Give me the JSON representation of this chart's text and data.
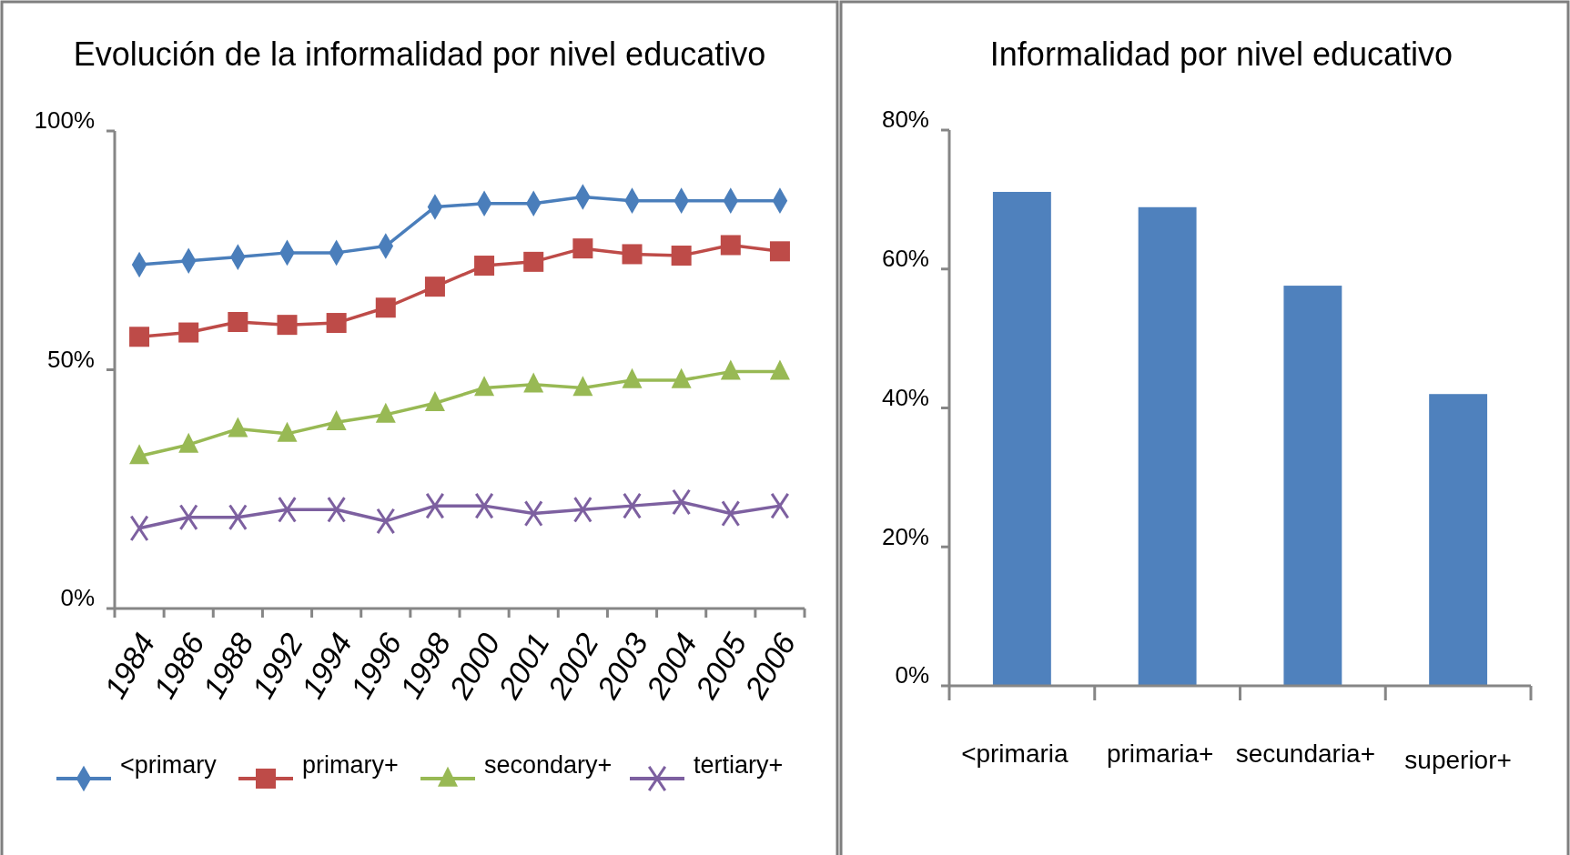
{
  "chart_data": [
    {
      "type": "line",
      "title": "Evolución de la informalidad por nivel educativo",
      "categories": [
        "1984",
        "1986",
        "1988",
        "1992",
        "1994",
        "1996",
        "1998",
        "2000",
        "2001",
        "2002",
        "2003",
        "2004",
        "2005",
        "2006"
      ],
      "series": [
        {
          "name": "<primary",
          "color": "#4a7ebb",
          "marker": "diamond",
          "values": [
            72.0,
            72.8,
            73.6,
            74.5,
            74.5,
            75.9,
            84.1,
            84.8,
            84.8,
            86.2,
            85.4,
            85.4,
            85.4,
            85.4
          ]
        },
        {
          "name": "primary+",
          "color": "#be4b48",
          "marker": "square",
          "values": [
            56.9,
            57.8,
            60.0,
            59.4,
            59.8,
            63.0,
            67.4,
            71.8,
            72.6,
            75.4,
            74.2,
            73.9,
            76.1,
            74.8
          ]
        },
        {
          "name": "secondary+",
          "color": "#98b954",
          "marker": "triangle",
          "values": [
            31.9,
            34.3,
            37.6,
            36.6,
            39.0,
            40.6,
            43.0,
            46.2,
            46.9,
            46.2,
            47.8,
            47.8,
            49.6,
            49.6
          ]
        },
        {
          "name": "tertiary+",
          "color": "#7d60a0",
          "marker": "cross",
          "values": [
            16.8,
            19.1,
            19.1,
            20.7,
            20.7,
            18.3,
            21.5,
            21.5,
            19.9,
            20.7,
            21.5,
            22.3,
            19.9,
            21.5
          ]
        }
      ],
      "ylim": [
        0,
        100
      ],
      "yticks": [
        {
          "value": 0,
          "label": "0%"
        },
        {
          "value": 50,
          "label": "50%"
        },
        {
          "value": 100,
          "label": "100%"
        }
      ],
      "grid": false,
      "legend": "bottom",
      "line_style": "solid"
    },
    {
      "type": "bar",
      "title": "Informalidad por nivel educativo",
      "categories": [
        "<primaria",
        "primaria+",
        "secundaria+",
        "superior+"
      ],
      "values": [
        71.1,
        68.9,
        57.6,
        42.0
      ],
      "color": "#4f81bd",
      "ylim": [
        0,
        80
      ],
      "yticks": [
        {
          "value": 0,
          "label": "0%"
        },
        {
          "value": 20,
          "label": "20%"
        },
        {
          "value": 40,
          "label": "40%"
        },
        {
          "value": 60,
          "label": "60%"
        },
        {
          "value": 80,
          "label": "80%"
        }
      ],
      "grid": false
    }
  ]
}
